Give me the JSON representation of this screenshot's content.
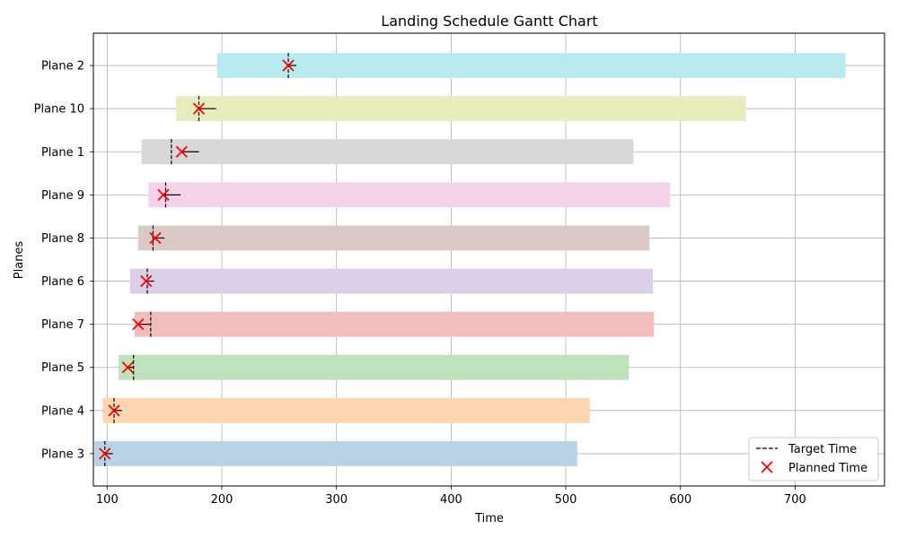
{
  "chart_data": {
    "type": "gantt",
    "title": "Landing Schedule Gantt Chart",
    "xlabel": "Time",
    "ylabel": "Planes",
    "xlim": [
      88,
      778
    ],
    "xticks": [
      100,
      200,
      300,
      400,
      500,
      600,
      700
    ],
    "grid": true,
    "legend_position": "bottom-right",
    "legend": {
      "target_label": "Target Time",
      "planned_label": "Planned Time"
    },
    "colors": {
      "target": "#000000",
      "planned": "#ff0000"
    },
    "planes": [
      {
        "label": "Plane 3",
        "start": 89,
        "end": 510,
        "target": 98,
        "planned": 98,
        "after": 105,
        "color": "#b8d3e6"
      },
      {
        "label": "Plane 4",
        "start": 96,
        "end": 521,
        "target": 106,
        "planned": 106,
        "after": 113,
        "color": "#fed6b1"
      },
      {
        "label": "Plane 5",
        "start": 110,
        "end": 555,
        "target": 123,
        "planned": 118,
        "after": 123,
        "color": "#bde2bc"
      },
      {
        "label": "Plane 7",
        "start": 124,
        "end": 577,
        "target": 138,
        "planned": 127,
        "after": 138,
        "color": "#f1bebe"
      },
      {
        "label": "Plane 6",
        "start": 120,
        "end": 576,
        "target": 135,
        "planned": 134,
        "after": 141,
        "color": "#dccfe8"
      },
      {
        "label": "Plane 8",
        "start": 127,
        "end": 573,
        "target": 140,
        "planned": 142,
        "after": 150,
        "color": "#dacac7"
      },
      {
        "label": "Plane 9",
        "start": 136,
        "end": 591,
        "target": 151,
        "planned": 149,
        "after": 164,
        "color": "#f4d2ec"
      },
      {
        "label": "Plane 1",
        "start": 130,
        "end": 559,
        "target": 156,
        "planned": 165,
        "after": 180,
        "color": "#d8d8d8"
      },
      {
        "label": "Plane 10",
        "start": 160,
        "end": 657,
        "target": 180,
        "planned": 180,
        "after": 195,
        "color": "#e8ebbc"
      },
      {
        "label": "Plane 2",
        "start": 196,
        "end": 744,
        "target": 258,
        "planned": 258,
        "after": 265,
        "color": "#b8ebf0"
      }
    ]
  }
}
